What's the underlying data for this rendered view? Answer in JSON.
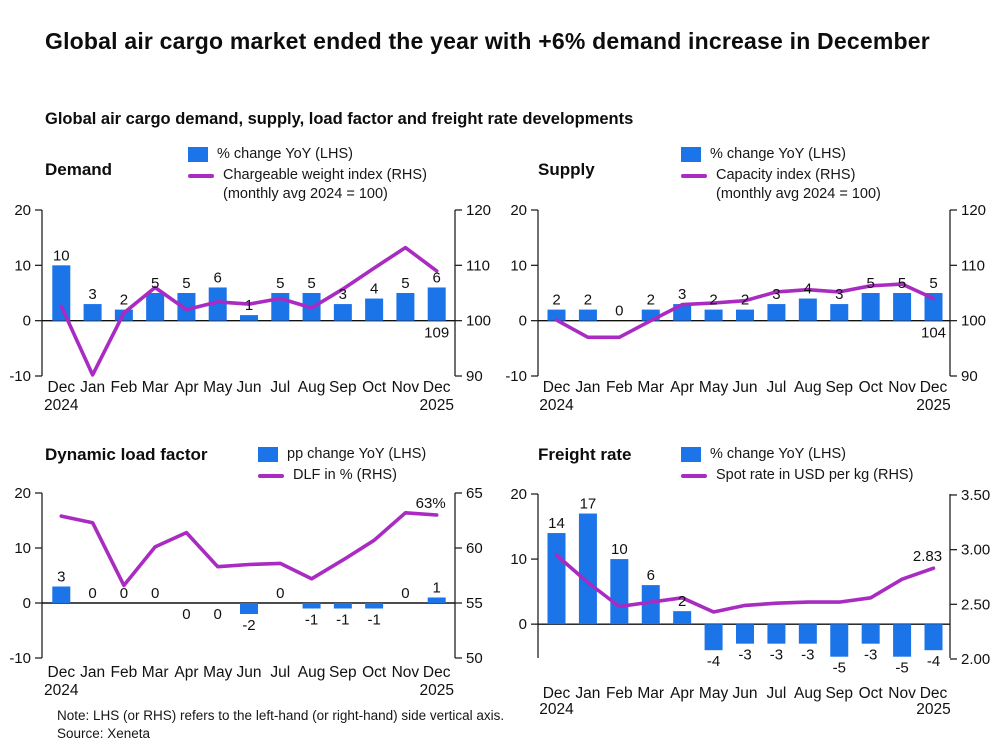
{
  "page": {
    "title": "Global air cargo market ended the year with +6% demand increase in December",
    "subtitle": "Global air cargo demand, supply, load factor and freight rate developments",
    "note": "Note: LHS (or RHS) refers to the left-hand (or right-hand) side vertical axis.",
    "source": "Source: Xeneta"
  },
  "colors": {
    "bar": "#1b74e8",
    "line": "#a92bc2",
    "text": "#111111",
    "axis": "#222222"
  },
  "chart_data": [
    {
      "id": "demand",
      "type": "bar+line",
      "title": "Demand",
      "legend": {
        "bar": "% change YoY (LHS)",
        "line": "Chargeable weight index (RHS)",
        "line_note": "(monthly avg 2024 = 100)"
      },
      "categories": [
        "Dec",
        "Jan",
        "Feb",
        "Mar",
        "Apr",
        "May",
        "Jun",
        "Jul",
        "Aug",
        "Sep",
        "Oct",
        "Nov",
        "Dec"
      ],
      "start_year": "2024",
      "end_year": "2025",
      "bars": {
        "name": "% change YoY",
        "axis": "left",
        "values": [
          10,
          3,
          2,
          5,
          5,
          6,
          1,
          5,
          5,
          3,
          4,
          5,
          6
        ]
      },
      "bar_label_pos": [
        "above",
        "above",
        "above",
        "above",
        "above",
        "above",
        "above",
        "above",
        "above",
        "above",
        "above",
        "above",
        "above"
      ],
      "line": {
        "name": "Chargeable weight index",
        "axis": "right",
        "values": [
          102.6,
          90.2,
          101.4,
          106.0,
          102.0,
          103.4,
          103.0,
          104.0,
          102.3,
          105.7,
          109.5,
          113.2,
          109
        ]
      },
      "end_label": {
        "text": "109",
        "position": "below-axis"
      },
      "left_axis": {
        "range": [
          -10,
          20
        ],
        "ticks": [
          {
            "value": 20,
            "label": "20"
          },
          {
            "value": 10,
            "label": "10"
          },
          {
            "value": 0,
            "label": "0"
          },
          {
            "value": -10,
            "label": "-10"
          }
        ]
      },
      "right_axis": {
        "range": [
          90,
          120
        ],
        "ticks": [
          {
            "value": 120,
            "label": "120"
          },
          {
            "value": 110,
            "label": "110"
          },
          {
            "value": 100,
            "label": "100"
          },
          {
            "value": 90,
            "label": "90"
          }
        ]
      }
    },
    {
      "id": "supply",
      "type": "bar+line",
      "title": "Supply",
      "legend": {
        "bar": "% change YoY (LHS)",
        "line": "Capacity index (RHS)",
        "line_note": "(monthly avg 2024 = 100)"
      },
      "categories": [
        "Dec",
        "Jan",
        "Feb",
        "Mar",
        "Apr",
        "May",
        "Jun",
        "Jul",
        "Aug",
        "Sep",
        "Oct",
        "Nov",
        "Dec"
      ],
      "start_year": "2024",
      "end_year": "2025",
      "bars": {
        "name": "% change YoY",
        "axis": "left",
        "values": [
          2,
          2,
          0,
          2,
          3,
          2,
          2,
          3,
          4,
          3,
          5,
          5,
          5
        ]
      },
      "bar_label_pos": [
        "above",
        "above",
        "above",
        "above",
        "above",
        "above",
        "above",
        "above",
        "above",
        "above",
        "above",
        "above",
        "above"
      ],
      "line": {
        "name": "Capacity index",
        "axis": "right",
        "values": [
          100.1,
          97.0,
          97.0,
          100.0,
          102.9,
          103.2,
          103.6,
          105.2,
          105.6,
          105.2,
          106.3,
          106.6,
          104
        ]
      },
      "end_label": {
        "text": "104",
        "position": "below-axis"
      },
      "left_axis": {
        "range": [
          -10,
          20
        ],
        "ticks": [
          {
            "value": 20,
            "label": "20"
          },
          {
            "value": 10,
            "label": "10"
          },
          {
            "value": 0,
            "label": "0"
          },
          {
            "value": -10,
            "label": "-10"
          }
        ]
      },
      "right_axis": {
        "range": [
          90,
          120
        ],
        "ticks": [
          {
            "value": 120,
            "label": "120"
          },
          {
            "value": 110,
            "label": "110"
          },
          {
            "value": 100,
            "label": "100"
          },
          {
            "value": 90,
            "label": "90"
          }
        ]
      }
    },
    {
      "id": "dlf",
      "type": "bar+line",
      "title": "Dynamic load factor",
      "legend": {
        "bar": "pp change YoY (LHS)",
        "line": "DLF in % (RHS)",
        "line_note": ""
      },
      "categories": [
        "Dec",
        "Jan",
        "Feb",
        "Mar",
        "Apr",
        "May",
        "Jun",
        "Jul",
        "Aug",
        "Sep",
        "Oct",
        "Nov",
        "Dec"
      ],
      "start_year": "2024",
      "end_year": "2025",
      "bars": {
        "name": "pp change YoY",
        "axis": "left",
        "values": [
          3,
          0,
          0,
          0,
          0,
          0,
          -2,
          0,
          -1,
          -1,
          -1,
          0,
          1
        ]
      },
      "bar_label_pos": [
        "above",
        "above",
        "above",
        "above",
        "below",
        "below",
        "below",
        "above",
        "below",
        "below",
        "below",
        "above",
        "above"
      ],
      "line": {
        "name": "DLF in %",
        "axis": "right",
        "values": [
          62.9,
          62.3,
          56.6,
          60.1,
          61.4,
          58.3,
          58.5,
          58.6,
          57.2,
          58.9,
          60.7,
          63.2,
          63.0
        ]
      },
      "end_label": {
        "text": "63%",
        "position": "above-line-end"
      },
      "left_axis": {
        "range": [
          -10,
          20
        ],
        "ticks": [
          {
            "value": 20,
            "label": "20"
          },
          {
            "value": 10,
            "label": "10"
          },
          {
            "value": 0,
            "label": "0"
          },
          {
            "value": -10,
            "label": "-10"
          }
        ]
      },
      "right_axis": {
        "range": [
          50,
          65
        ],
        "ticks": [
          {
            "value": 65,
            "label": "65"
          },
          {
            "value": 60,
            "label": "60"
          },
          {
            "value": 55,
            "label": "55"
          },
          {
            "value": 50,
            "label": "50"
          }
        ]
      }
    },
    {
      "id": "freight",
      "type": "bar+line",
      "title": "Freight rate",
      "legend": {
        "bar": "% change YoY (LHS)",
        "line": "Spot rate in USD per kg (RHS)",
        "line_note": ""
      },
      "categories": [
        "Dec",
        "Jan",
        "Feb",
        "Mar",
        "Apr",
        "May",
        "Jun",
        "Jul",
        "Aug",
        "Sep",
        "Oct",
        "Nov",
        "Dec"
      ],
      "start_year": "2024",
      "end_year": "2025",
      "bars": {
        "name": "% change YoY",
        "axis": "left",
        "values": [
          14,
          17,
          10,
          6,
          2,
          -4,
          -3,
          -3,
          -3,
          -5,
          -3,
          -5,
          -4
        ]
      },
      "bar_label_pos": [
        "above",
        "above",
        "above",
        "above",
        "above",
        "below",
        "below",
        "below",
        "below",
        "below",
        "below",
        "below",
        "below"
      ],
      "line": {
        "name": "Spot rate in USD per kg",
        "axis": "right",
        "values": [
          2.95,
          2.7,
          2.48,
          2.52,
          2.56,
          2.43,
          2.49,
          2.51,
          2.52,
          2.52,
          2.56,
          2.73,
          2.83
        ]
      },
      "end_label": {
        "text": "2.83",
        "position": "above-line-end"
      },
      "left_axis": {
        "range": [
          -5.2,
          20
        ],
        "ticks": [
          {
            "value": 20,
            "label": "20"
          },
          {
            "value": 10,
            "label": "10"
          },
          {
            "value": 0,
            "label": "0"
          }
        ]
      },
      "right_axis": {
        "range": [
          2.009,
          3.509
        ],
        "ticks": [
          {
            "value": 3.5,
            "label": "3.50"
          },
          {
            "value": 3.0,
            "label": "3.00"
          },
          {
            "value": 2.5,
            "label": "2.50"
          },
          {
            "value": 2.0,
            "label": "2.00"
          }
        ]
      }
    }
  ]
}
